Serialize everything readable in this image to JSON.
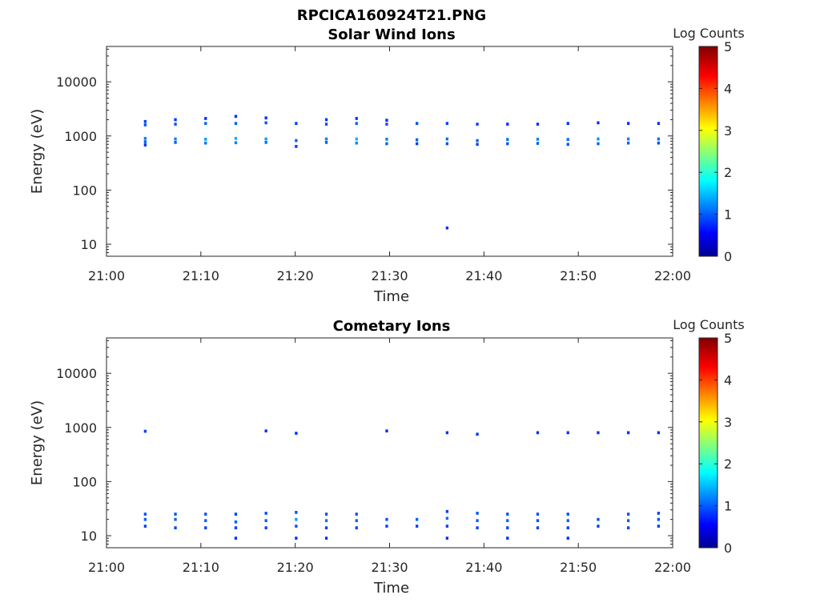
{
  "figure": {
    "title": "RPCICA160924T21.PNG"
  },
  "colorbar": {
    "label": "Log Counts",
    "min": 0,
    "max": 5,
    "ticks": [
      "0",
      "1",
      "2",
      "3",
      "4",
      "5"
    ],
    "colormap": "jet"
  },
  "chart_data": [
    {
      "type": "heatmap",
      "title": "Solar Wind Ions",
      "xlabel": "Time",
      "ylabel": "Energy (eV)",
      "x_range": [
        "21:00",
        "22:00"
      ],
      "x_ticks": [
        "21:00",
        "21:10",
        "21:20",
        "21:30",
        "21:40",
        "21:50",
        "22:00"
      ],
      "y_scale": "log",
      "y_range": [
        6,
        45000
      ],
      "y_ticks": [
        "10",
        "100",
        "1000",
        "10000"
      ],
      "y_tick_values": [
        10,
        100,
        1000,
        10000
      ],
      "sweep_times_min": [
        4.1,
        7.3,
        10.5,
        13.7,
        16.9,
        20.1,
        23.3,
        26.5,
        29.7,
        32.9,
        36.1,
        39.3,
        42.5,
        45.7,
        48.9,
        52.1,
        55.3,
        58.5
      ],
      "cells": [
        {
          "t": 4.1,
          "e": 1600,
          "v": 0.5
        },
        {
          "t": 4.1,
          "e": 1850,
          "v": 0.4
        },
        {
          "t": 4.1,
          "e": 900,
          "v": 0.8
        },
        {
          "t": 4.1,
          "e": 780,
          "v": 0.6
        },
        {
          "t": 4.1,
          "e": 680,
          "v": 0.3
        },
        {
          "t": 7.3,
          "e": 1650,
          "v": 0.5
        },
        {
          "t": 7.3,
          "e": 2000,
          "v": 0.3
        },
        {
          "t": 7.3,
          "e": 880,
          "v": 0.8
        },
        {
          "t": 7.3,
          "e": 760,
          "v": 0.6
        },
        {
          "t": 10.5,
          "e": 1700,
          "v": 0.6
        },
        {
          "t": 10.5,
          "e": 2100,
          "v": 0.3
        },
        {
          "t": 10.5,
          "e": 870,
          "v": 1.0
        },
        {
          "t": 10.5,
          "e": 740,
          "v": 0.7
        },
        {
          "t": 13.7,
          "e": 1700,
          "v": 0.6
        },
        {
          "t": 13.7,
          "e": 2300,
          "v": 0.3
        },
        {
          "t": 13.7,
          "e": 900,
          "v": 1.1
        },
        {
          "t": 13.7,
          "e": 750,
          "v": 0.8
        },
        {
          "t": 16.9,
          "e": 1750,
          "v": 0.5
        },
        {
          "t": 16.9,
          "e": 2150,
          "v": 0.3
        },
        {
          "t": 16.9,
          "e": 880,
          "v": 1.0
        },
        {
          "t": 16.9,
          "e": 760,
          "v": 0.7
        },
        {
          "t": 20.1,
          "e": 1700,
          "v": 0.4
        },
        {
          "t": 20.1,
          "e": 820,
          "v": 0.6
        },
        {
          "t": 20.1,
          "e": 640,
          "v": 0.4
        },
        {
          "t": 23.3,
          "e": 1650,
          "v": 0.5
        },
        {
          "t": 23.3,
          "e": 2000,
          "v": 0.3
        },
        {
          "t": 23.3,
          "e": 880,
          "v": 0.8
        },
        {
          "t": 23.3,
          "e": 760,
          "v": 0.6
        },
        {
          "t": 26.5,
          "e": 1700,
          "v": 0.6
        },
        {
          "t": 26.5,
          "e": 2100,
          "v": 0.3
        },
        {
          "t": 26.5,
          "e": 880,
          "v": 1.1
        },
        {
          "t": 26.5,
          "e": 740,
          "v": 0.8
        },
        {
          "t": 29.7,
          "e": 1650,
          "v": 0.5
        },
        {
          "t": 29.7,
          "e": 1950,
          "v": 0.3
        },
        {
          "t": 29.7,
          "e": 870,
          "v": 0.8
        },
        {
          "t": 29.7,
          "e": 720,
          "v": 0.6
        },
        {
          "t": 32.9,
          "e": 1700,
          "v": 0.5
        },
        {
          "t": 32.9,
          "e": 850,
          "v": 0.6
        },
        {
          "t": 32.9,
          "e": 720,
          "v": 0.4
        },
        {
          "t": 36.1,
          "e": 1700,
          "v": 0.4
        },
        {
          "t": 36.1,
          "e": 880,
          "v": 0.7
        },
        {
          "t": 36.1,
          "e": 720,
          "v": 0.5
        },
        {
          "t": 36.1,
          "e": 20,
          "v": 0.3
        },
        {
          "t": 39.3,
          "e": 1650,
          "v": 0.4
        },
        {
          "t": 39.3,
          "e": 820,
          "v": 0.6
        },
        {
          "t": 39.3,
          "e": 700,
          "v": 0.4
        },
        {
          "t": 42.5,
          "e": 1650,
          "v": 0.3
        },
        {
          "t": 42.5,
          "e": 860,
          "v": 0.7
        },
        {
          "t": 42.5,
          "e": 720,
          "v": 0.5
        },
        {
          "t": 45.7,
          "e": 1650,
          "v": 0.3
        },
        {
          "t": 45.7,
          "e": 870,
          "v": 0.8
        },
        {
          "t": 45.7,
          "e": 730,
          "v": 0.6
        },
        {
          "t": 48.9,
          "e": 1700,
          "v": 0.3
        },
        {
          "t": 48.9,
          "e": 860,
          "v": 0.7
        },
        {
          "t": 48.9,
          "e": 700,
          "v": 0.5
        },
        {
          "t": 52.1,
          "e": 1750,
          "v": 0.3
        },
        {
          "t": 52.1,
          "e": 880,
          "v": 0.9
        },
        {
          "t": 52.1,
          "e": 720,
          "v": 0.6
        },
        {
          "t": 55.3,
          "e": 1700,
          "v": 0.3
        },
        {
          "t": 55.3,
          "e": 880,
          "v": 0.8
        },
        {
          "t": 55.3,
          "e": 740,
          "v": 0.6
        },
        {
          "t": 58.5,
          "e": 1700,
          "v": 0.3
        },
        {
          "t": 58.5,
          "e": 880,
          "v": 0.7
        },
        {
          "t": 58.5,
          "e": 740,
          "v": 0.5
        }
      ]
    },
    {
      "type": "heatmap",
      "title": "Cometary Ions",
      "xlabel": "Time",
      "ylabel": "Energy (eV)",
      "x_range": [
        "21:00",
        "22:00"
      ],
      "x_ticks": [
        "21:00",
        "21:10",
        "21:20",
        "21:30",
        "21:40",
        "21:50",
        "22:00"
      ],
      "y_scale": "log",
      "y_range": [
        6,
        45000
      ],
      "y_ticks": [
        "10",
        "100",
        "1000",
        "10000"
      ],
      "y_tick_values": [
        10,
        100,
        1000,
        10000
      ],
      "sweep_times_min": [
        4.1,
        7.3,
        10.5,
        13.7,
        16.9,
        20.1,
        23.3,
        26.5,
        29.7,
        32.9,
        36.1,
        39.3,
        42.5,
        45.7,
        48.9,
        52.1,
        55.3,
        58.5
      ],
      "cells": [
        {
          "t": 4.1,
          "e": 850,
          "v": 0.4
        },
        {
          "t": 4.1,
          "e": 25,
          "v": 0.5
        },
        {
          "t": 4.1,
          "e": 20,
          "v": 0.6
        },
        {
          "t": 4.1,
          "e": 15,
          "v": 0.4
        },
        {
          "t": 7.3,
          "e": 25,
          "v": 0.5
        },
        {
          "t": 7.3,
          "e": 20,
          "v": 0.6
        },
        {
          "t": 7.3,
          "e": 14,
          "v": 0.4
        },
        {
          "t": 10.5,
          "e": 25,
          "v": 0.5
        },
        {
          "t": 10.5,
          "e": 19,
          "v": 0.6
        },
        {
          "t": 10.5,
          "e": 14,
          "v": 0.4
        },
        {
          "t": 13.7,
          "e": 25,
          "v": 0.4
        },
        {
          "t": 13.7,
          "e": 18,
          "v": 0.6
        },
        {
          "t": 13.7,
          "e": 14,
          "v": 0.4
        },
        {
          "t": 13.7,
          "e": 9,
          "v": 0.3
        },
        {
          "t": 16.9,
          "e": 860,
          "v": 0.3
        },
        {
          "t": 16.9,
          "e": 26,
          "v": 0.5
        },
        {
          "t": 16.9,
          "e": 19,
          "v": 0.6
        },
        {
          "t": 16.9,
          "e": 14,
          "v": 0.4
        },
        {
          "t": 20.1,
          "e": 780,
          "v": 0.3
        },
        {
          "t": 20.1,
          "e": 27,
          "v": 0.5
        },
        {
          "t": 20.1,
          "e": 20,
          "v": 1.0
        },
        {
          "t": 20.1,
          "e": 15,
          "v": 0.5
        },
        {
          "t": 20.1,
          "e": 9,
          "v": 0.3
        },
        {
          "t": 23.3,
          "e": 25,
          "v": 0.5
        },
        {
          "t": 23.3,
          "e": 19,
          "v": 0.7
        },
        {
          "t": 23.3,
          "e": 14,
          "v": 0.4
        },
        {
          "t": 23.3,
          "e": 9,
          "v": 0.3
        },
        {
          "t": 26.5,
          "e": 25,
          "v": 0.5
        },
        {
          "t": 26.5,
          "e": 19,
          "v": 0.6
        },
        {
          "t": 26.5,
          "e": 14,
          "v": 0.4
        },
        {
          "t": 29.7,
          "e": 860,
          "v": 0.3
        },
        {
          "t": 29.7,
          "e": 20,
          "v": 0.5
        },
        {
          "t": 29.7,
          "e": 15,
          "v": 0.4
        },
        {
          "t": 32.9,
          "e": 20,
          "v": 0.6
        },
        {
          "t": 32.9,
          "e": 15,
          "v": 0.4
        },
        {
          "t": 36.1,
          "e": 800,
          "v": 0.3
        },
        {
          "t": 36.1,
          "e": 28,
          "v": 0.4
        },
        {
          "t": 36.1,
          "e": 21,
          "v": 0.7
        },
        {
          "t": 36.1,
          "e": 15,
          "v": 0.4
        },
        {
          "t": 36.1,
          "e": 9,
          "v": 0.3
        },
        {
          "t": 39.3,
          "e": 750,
          "v": 0.3
        },
        {
          "t": 39.3,
          "e": 26,
          "v": 0.5
        },
        {
          "t": 39.3,
          "e": 19,
          "v": 0.6
        },
        {
          "t": 39.3,
          "e": 14,
          "v": 0.4
        },
        {
          "t": 42.5,
          "e": 25,
          "v": 0.5
        },
        {
          "t": 42.5,
          "e": 19,
          "v": 0.6
        },
        {
          "t": 42.5,
          "e": 14,
          "v": 0.4
        },
        {
          "t": 42.5,
          "e": 9,
          "v": 0.3
        },
        {
          "t": 45.7,
          "e": 800,
          "v": 0.3
        },
        {
          "t": 45.7,
          "e": 25,
          "v": 0.5
        },
        {
          "t": 45.7,
          "e": 19,
          "v": 0.5
        },
        {
          "t": 45.7,
          "e": 14,
          "v": 0.4
        },
        {
          "t": 48.9,
          "e": 800,
          "v": 0.3
        },
        {
          "t": 48.9,
          "e": 25,
          "v": 0.5
        },
        {
          "t": 48.9,
          "e": 19,
          "v": 0.6
        },
        {
          "t": 48.9,
          "e": 14,
          "v": 0.4
        },
        {
          "t": 48.9,
          "e": 9,
          "v": 0.3
        },
        {
          "t": 52.1,
          "e": 800,
          "v": 0.3
        },
        {
          "t": 52.1,
          "e": 20,
          "v": 0.5
        },
        {
          "t": 52.1,
          "e": 15,
          "v": 0.4
        },
        {
          "t": 55.3,
          "e": 800,
          "v": 0.3
        },
        {
          "t": 55.3,
          "e": 25,
          "v": 0.5
        },
        {
          "t": 55.3,
          "e": 19,
          "v": 0.6
        },
        {
          "t": 55.3,
          "e": 14,
          "v": 0.4
        },
        {
          "t": 58.5,
          "e": 800,
          "v": 0.3
        },
        {
          "t": 58.5,
          "e": 26,
          "v": 0.4
        },
        {
          "t": 58.5,
          "e": 20,
          "v": 0.5
        },
        {
          "t": 58.5,
          "e": 15,
          "v": 0.4
        }
      ]
    }
  ]
}
